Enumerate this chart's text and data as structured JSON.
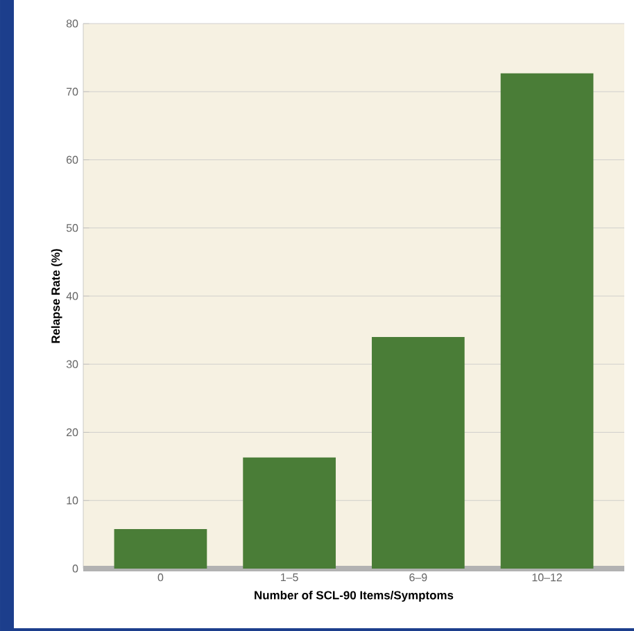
{
  "chart_data": {
    "type": "bar",
    "xlabel": "Number of SCL-90 Items/Symptoms",
    "ylabel": "Relapse Rate (%)",
    "categories": [
      "0",
      "1–5",
      "6–9",
      "10–12"
    ],
    "values": [
      5.8,
      16.3,
      34,
      72.7
    ],
    "color": "#4a7d37",
    "ylim": [
      0,
      80
    ],
    "yticks": [
      0,
      10,
      20,
      30,
      40,
      50,
      60,
      70,
      80
    ],
    "grid": "y"
  }
}
